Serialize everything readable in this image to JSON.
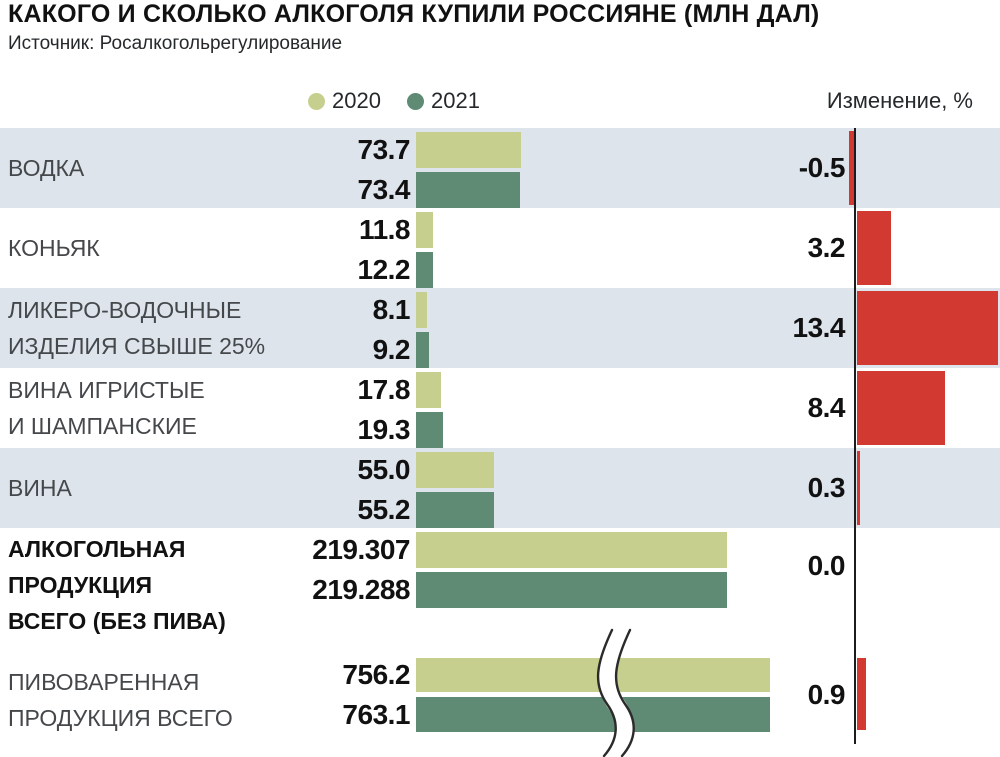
{
  "chart_data": {
    "type": "bar",
    "orientation": "horizontal-grouped",
    "title": "КАКОГО И СКОЛЬКО АЛКОГОЛЯ КУПИЛИ РОССИЯНЕ (МЛН ДАЛ)",
    "source": "Источник: Росалкогольрегулирование",
    "unit": "млн дал",
    "legend": [
      "2020",
      "2021"
    ],
    "change_column_header": "Изменение, %",
    "rows": [
      {
        "category": "ВОДКА",
        "label_lines": [
          "ВОДКА"
        ],
        "values": {
          "y2020": 73.7,
          "y2021": 73.4
        },
        "value_labels": {
          "y2020": "73.7",
          "y2021": "73.4"
        },
        "change_pct": -0.5,
        "change_label": "-0.5",
        "shaded": true,
        "bold_label": false,
        "axis_break": false
      },
      {
        "category": "КОНЬЯК",
        "label_lines": [
          "КОНЬЯК"
        ],
        "values": {
          "y2020": 11.8,
          "y2021": 12.2
        },
        "value_labels": {
          "y2020": "11.8",
          "y2021": "12.2"
        },
        "change_pct": 3.2,
        "change_label": "3.2",
        "shaded": false,
        "bold_label": false,
        "axis_break": false
      },
      {
        "category": "ЛИКЕРО-ВОДОЧНЫЕ ИЗДЕЛИЯ СВЫШЕ 25%",
        "label_lines": [
          "ЛИКЕРО-ВОДОЧНЫЕ",
          "ИЗДЕЛИЯ СВЫШЕ 25%"
        ],
        "values": {
          "y2020": 8.1,
          "y2021": 9.2
        },
        "value_labels": {
          "y2020": "8.1",
          "y2021": "9.2"
        },
        "change_pct": 13.4,
        "change_label": "13.4",
        "shaded": true,
        "bold_label": false,
        "axis_break": false
      },
      {
        "category": "ВИНА ИГРИСТЫЕ И ШАМПАНСКИЕ",
        "label_lines": [
          "ВИНА ИГРИСТЫЕ",
          "И ШАМПАНСКИЕ"
        ],
        "values": {
          "y2020": 17.8,
          "y2021": 19.3
        },
        "value_labels": {
          "y2020": "17.8",
          "y2021": "19.3"
        },
        "change_pct": 8.4,
        "change_label": "8.4",
        "shaded": false,
        "bold_label": false,
        "axis_break": false
      },
      {
        "category": "ВИНА",
        "label_lines": [
          "ВИНА"
        ],
        "values": {
          "y2020": 55.0,
          "y2021": 55.2
        },
        "value_labels": {
          "y2020": "55.0",
          "y2021": "55.2"
        },
        "change_pct": 0.3,
        "change_label": "0.3",
        "shaded": true,
        "bold_label": false,
        "axis_break": false
      },
      {
        "category": "АЛКОГОЛЬНАЯ ПРОДУКЦИЯ ВСЕГО (БЕЗ ПИВА)",
        "label_lines": [
          "АЛКОГОЛЬНАЯ",
          "ПРОДУКЦИЯ",
          "ВСЕГО (БЕЗ ПИВА)"
        ],
        "values": {
          "y2020": 219.307,
          "y2021": 219.288
        },
        "value_labels": {
          "y2020": "219.307",
          "y2021": "219.288"
        },
        "change_pct": 0.0,
        "change_label": "0.0",
        "shaded": false,
        "bold_label": true,
        "axis_break": false
      },
      {
        "category": "ПИВОВАРЕННАЯ ПРОДУКЦИЯ ВСЕГО",
        "label_lines": [
          "ПИВОВАРЕННАЯ",
          "ПРОДУКЦИЯ ВСЕГО"
        ],
        "values": {
          "y2020": 756.2,
          "y2021": 763.1
        },
        "value_labels": {
          "y2020": "756.2",
          "y2021": "763.1"
        },
        "change_pct": 0.9,
        "change_label": "0.9",
        "shaded": false,
        "bold_label": false,
        "axis_break": true
      }
    ]
  },
  "colors": {
    "bar_2020": "#c6cf8d",
    "bar_2021": "#5f8a74",
    "row_shade": "#dde4ec",
    "change_bar": "#d23a31",
    "axis": "#1c1c1c"
  }
}
